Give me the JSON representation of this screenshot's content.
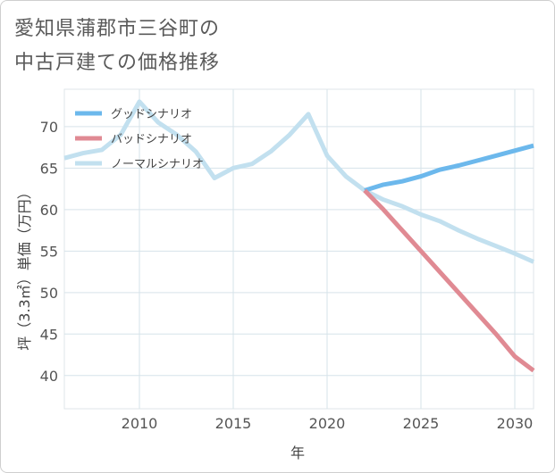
{
  "title_lines": [
    "愛知県蒲郡市三谷町の",
    "中古戸建ての価格推移"
  ],
  "chart_data": {
    "type": "line",
    "title": "愛知県蒲郡市三谷町の中古戸建ての価格推移",
    "xlabel": "年",
    "ylabel": "坪（3.3㎡）単価（万円）",
    "xlim": [
      2006,
      2031
    ],
    "ylim": [
      36,
      74.5
    ],
    "xticks": [
      2010,
      2015,
      2020,
      2025,
      2030
    ],
    "yticks": [
      40,
      45,
      50,
      55,
      60,
      65,
      70
    ],
    "grid": true,
    "legend_position": "top-left",
    "series": [
      {
        "name": "グッドシナリオ",
        "color": "#6cb8ec",
        "x": [
          2022,
          2023,
          2024,
          2025,
          2026,
          2027,
          2028,
          2029,
          2030,
          2031
        ],
        "y": [
          62.3,
          63.0,
          63.4,
          64.0,
          64.8,
          65.3,
          65.9,
          66.5,
          67.1,
          67.7
        ]
      },
      {
        "name": "バッドシナリオ",
        "color": "#e08a93",
        "x": [
          2022,
          2023,
          2024,
          2025,
          2026,
          2027,
          2028,
          2029,
          2030,
          2031
        ],
        "y": [
          62.3,
          60.0,
          57.5,
          55.0,
          52.5,
          50.0,
          47.5,
          45.0,
          42.3,
          40.6
        ]
      },
      {
        "name": "ノーマルシナリオ",
        "color": "#c2e0ef",
        "x": [
          2006,
          2007,
          2008,
          2009,
          2010,
          2011,
          2012,
          2013,
          2014,
          2015,
          2016,
          2017,
          2018,
          2019,
          2020,
          2021,
          2022,
          2023,
          2024,
          2025,
          2026,
          2027,
          2028,
          2029,
          2030,
          2031
        ],
        "y": [
          66.2,
          66.8,
          67.2,
          69.0,
          73.0,
          70.5,
          69.0,
          67.0,
          63.8,
          65.0,
          65.5,
          67.0,
          69.0,
          71.5,
          66.5,
          64.0,
          62.3,
          61.2,
          60.4,
          59.4,
          58.6,
          57.5,
          56.5,
          55.6,
          54.7,
          53.7
        ]
      }
    ]
  }
}
